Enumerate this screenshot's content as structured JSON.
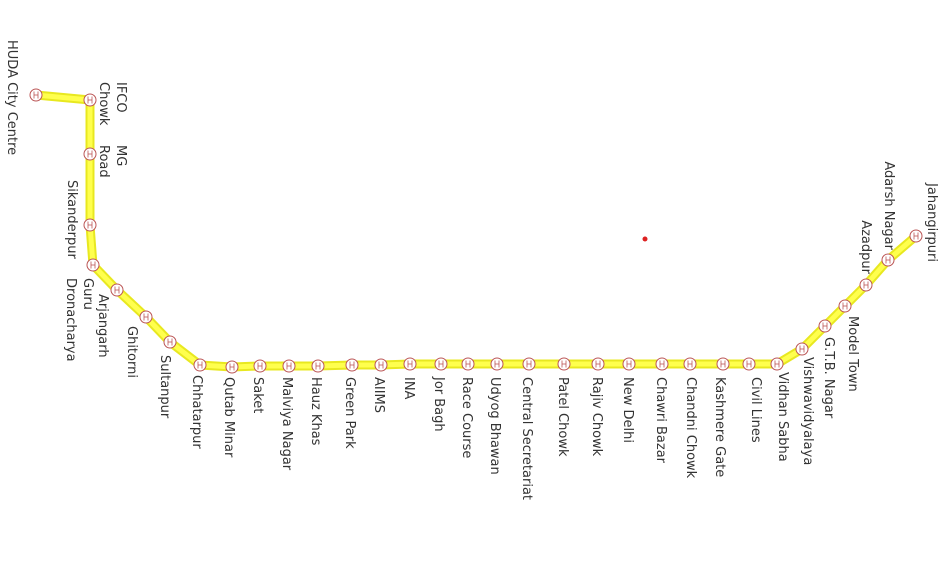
{
  "map": {
    "stations": [
      {
        "lines": [
          "HUDA City Centre"
        ]
      },
      {
        "lines": [
          "IFCO",
          "Chowk"
        ]
      },
      {
        "lines": [
          "MG",
          "Road"
        ]
      },
      {
        "lines": [
          "Sikanderpur"
        ]
      },
      {
        "lines": [
          "Guru",
          "Dronacharya"
        ]
      },
      {
        "lines": [
          "Arjangarh"
        ]
      },
      {
        "lines": [
          "Ghitorni"
        ]
      },
      {
        "lines": [
          "Sultanpur"
        ]
      },
      {
        "lines": [
          "Chhatarpur"
        ]
      },
      {
        "lines": [
          "Qutab Minar"
        ]
      },
      {
        "lines": [
          "Saket"
        ]
      },
      {
        "lines": [
          "Malviya Nagar"
        ]
      },
      {
        "lines": [
          "Hauz Khas"
        ]
      },
      {
        "lines": [
          "Green Park"
        ]
      },
      {
        "lines": [
          "AIIMS"
        ]
      },
      {
        "lines": [
          "INA"
        ]
      },
      {
        "lines": [
          "Jor Bagh"
        ]
      },
      {
        "lines": [
          "Race Course"
        ]
      },
      {
        "lines": [
          "Udyog Bhawan"
        ]
      },
      {
        "lines": [
          "Central Secretariat"
        ]
      },
      {
        "lines": [
          "Patel Chowk"
        ]
      },
      {
        "lines": [
          "Rajiv Chowk"
        ]
      },
      {
        "lines": [
          "New Delhi"
        ]
      },
      {
        "lines": [
          "Chawri Bazar"
        ]
      },
      {
        "lines": [
          "Chandni Chowk"
        ]
      },
      {
        "lines": [
          "Kashmere Gate"
        ]
      },
      {
        "lines": [
          "Civil Lines"
        ]
      },
      {
        "lines": [
          "Vidhan Sabha"
        ]
      },
      {
        "lines": [
          "Vishwavidyalaya"
        ]
      },
      {
        "lines": [
          "G.T.B. Nagar"
        ]
      },
      {
        "lines": [
          "Model Town"
        ]
      },
      {
        "lines": [
          "Azadpur"
        ]
      },
      {
        "lines": [
          "Adarsh Nagar"
        ]
      },
      {
        "lines": [
          "Jahangirpuri"
        ]
      }
    ]
  }
}
